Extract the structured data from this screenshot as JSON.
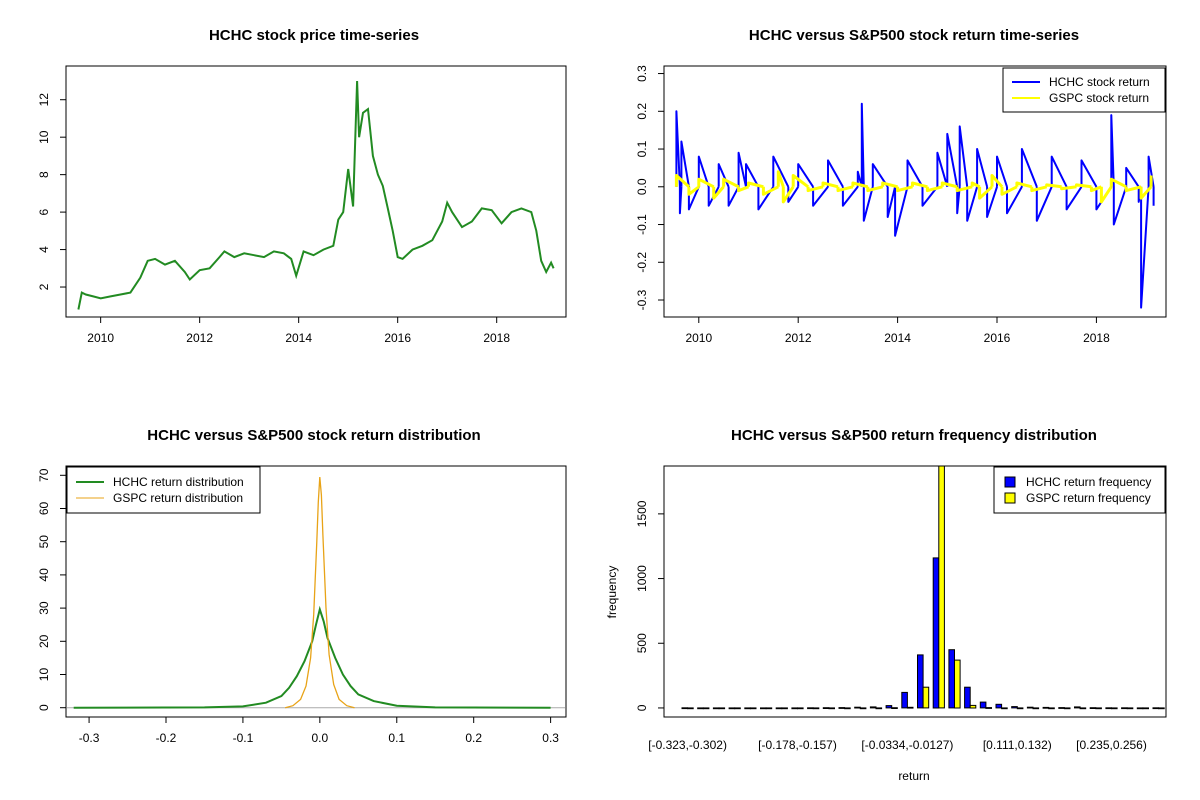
{
  "colors": {
    "hchc": "#228B22",
    "hchc_return": "#0000FF",
    "gspc": "#FFFF00",
    "gspc_density": "#E8A317"
  },
  "chart_data": [
    {
      "type": "line",
      "title": "HCHC stock price time-series",
      "xlim": [
        2009.3,
        2019.4
      ],
      "ylim": [
        0.4,
        13.8
      ],
      "xticks": [
        2010,
        2012,
        2014,
        2016,
        2018
      ],
      "xtick_labels": [
        "2010",
        "2012",
        "2014",
        "2016",
        "2018"
      ],
      "yticks": [
        2,
        4,
        6,
        8,
        10,
        12
      ],
      "ytick_labels": [
        "2",
        "4",
        "6",
        "8",
        "10",
        "12"
      ],
      "series": [
        {
          "color": "#228B22",
          "x": [
            2009.55,
            2009.62,
            2009.7,
            2009.85,
            2010.0,
            2010.2,
            2010.4,
            2010.6,
            2010.8,
            2010.95,
            2011.1,
            2011.3,
            2011.5,
            2011.7,
            2011.8,
            2012.0,
            2012.2,
            2012.4,
            2012.5,
            2012.7,
            2012.9,
            2013.1,
            2013.3,
            2013.5,
            2013.7,
            2013.85,
            2013.95,
            2014.1,
            2014.3,
            2014.5,
            2014.7,
            2014.8,
            2014.9,
            2015.0,
            2015.1,
            2015.18,
            2015.22,
            2015.3,
            2015.4,
            2015.5,
            2015.6,
            2015.7,
            2015.8,
            2015.9,
            2016.0,
            2016.1,
            2016.3,
            2016.5,
            2016.7,
            2016.9,
            2017.0,
            2017.1,
            2017.3,
            2017.5,
            2017.7,
            2017.9,
            2018.1,
            2018.3,
            2018.5,
            2018.7,
            2018.8,
            2018.9,
            2019.0,
            2019.1,
            2019.15
          ],
          "values": [
            0.8,
            1.7,
            1.6,
            1.5,
            1.4,
            1.5,
            1.6,
            1.7,
            2.5,
            3.4,
            3.5,
            3.2,
            3.4,
            2.8,
            2.4,
            2.9,
            3.0,
            3.6,
            3.9,
            3.6,
            3.8,
            3.7,
            3.6,
            3.9,
            3.8,
            3.5,
            2.6,
            3.9,
            3.7,
            4.0,
            4.2,
            5.6,
            6.0,
            8.3,
            6.3,
            13.0,
            10.0,
            11.3,
            11.5,
            9.0,
            8.0,
            7.4,
            6.2,
            5.0,
            3.6,
            3.5,
            4.0,
            4.2,
            4.5,
            5.5,
            6.5,
            6.0,
            5.2,
            5.5,
            6.2,
            6.1,
            5.4,
            6.0,
            6.2,
            6.0,
            5.0,
            3.4,
            2.8,
            3.3,
            3.0
          ]
        }
      ]
    },
    {
      "type": "line",
      "title": "HCHC versus S&P500 stock return time-series",
      "xlim": [
        2009.3,
        2019.4
      ],
      "ylim": [
        -0.345,
        0.32
      ],
      "xticks": [
        2010,
        2012,
        2014,
        2016,
        2018
      ],
      "xtick_labels": [
        "2010",
        "2012",
        "2014",
        "2016",
        "2018"
      ],
      "yticks": [
        -0.3,
        -0.2,
        -0.1,
        0.0,
        0.1,
        0.2,
        0.3
      ],
      "ytick_labels": [
        "-0.3",
        "-0.2",
        "-0.1",
        "0.0",
        "0.1",
        "0.2",
        "0.3"
      ],
      "legend": {
        "position": "top-right",
        "labels": [
          "HCHC stock return",
          "GSPC stock return"
        ]
      },
      "series": [
        {
          "name": "HCHC stock return",
          "color": "#0000FF",
          "x": [
            2009.55,
            2009.62,
            2009.65,
            2009.8,
            2010.0,
            2010.2,
            2010.4,
            2010.6,
            2010.8,
            2010.95,
            2011.2,
            2011.5,
            2011.8,
            2012.0,
            2012.3,
            2012.6,
            2012.9,
            2013.2,
            2013.28,
            2013.32,
            2013.5,
            2013.8,
            2013.95,
            2014.2,
            2014.5,
            2014.8,
            2015.0,
            2015.2,
            2015.25,
            2015.4,
            2015.6,
            2015.8,
            2016.0,
            2016.2,
            2016.5,
            2016.8,
            2017.1,
            2017.4,
            2017.7,
            2018.0,
            2018.3,
            2018.35,
            2018.6,
            2018.85,
            2018.9,
            2019.05,
            2019.15
          ],
          "values": [
            0.2,
            -0.07,
            0.12,
            -0.06,
            0.08,
            -0.05,
            0.06,
            -0.05,
            0.09,
            0.06,
            -0.06,
            0.08,
            -0.04,
            0.06,
            -0.05,
            0.07,
            -0.05,
            0.04,
            0.22,
            -0.09,
            0.06,
            -0.08,
            -0.13,
            0.07,
            -0.05,
            0.09,
            0.14,
            -0.07,
            0.16,
            -0.09,
            0.1,
            -0.08,
            0.08,
            -0.07,
            0.1,
            -0.09,
            0.08,
            -0.06,
            0.07,
            -0.06,
            0.19,
            -0.1,
            0.05,
            -0.04,
            -0.32,
            0.08,
            -0.05
          ]
        },
        {
          "name": "GSPC stock return",
          "color": "#FFFF00",
          "x": [
            2009.55,
            2009.8,
            2010.0,
            2010.3,
            2010.5,
            2010.8,
            2011.0,
            2011.3,
            2011.6,
            2011.7,
            2011.9,
            2012.2,
            2012.5,
            2012.8,
            2013.1,
            2013.4,
            2013.7,
            2014.0,
            2014.3,
            2014.6,
            2014.9,
            2015.2,
            2015.5,
            2015.65,
            2015.9,
            2016.1,
            2016.4,
            2016.7,
            2017.0,
            2017.3,
            2017.6,
            2017.9,
            2018.1,
            2018.3,
            2018.6,
            2018.9,
            2019.1
          ],
          "values": [
            0.03,
            -0.02,
            0.02,
            -0.03,
            0.02,
            -0.01,
            0.01,
            -0.02,
            0.04,
            -0.04,
            0.03,
            -0.01,
            0.01,
            -0.01,
            0.01,
            -0.01,
            0.01,
            -0.01,
            0.01,
            -0.01,
            0.01,
            -0.01,
            0.01,
            -0.03,
            0.03,
            -0.02,
            0.01,
            -0.01,
            0.005,
            -0.005,
            0.005,
            -0.01,
            -0.04,
            0.02,
            -0.01,
            -0.03,
            0.03
          ]
        }
      ]
    },
    {
      "type": "line",
      "title": "HCHC versus S&P500 stock return distribution",
      "xlim": [
        -0.33,
        0.32
      ],
      "ylim": [
        -2.8,
        72.8
      ],
      "xticks": [
        -0.3,
        -0.2,
        -0.1,
        0.0,
        0.1,
        0.2,
        0.3
      ],
      "xtick_labels": [
        "-0.3",
        "-0.2",
        "-0.1",
        "0.0",
        "0.1",
        "0.2",
        "0.3"
      ],
      "yticks": [
        0,
        10,
        20,
        30,
        40,
        50,
        60,
        70
      ],
      "ytick_labels": [
        "0",
        "10",
        "20",
        "30",
        "40",
        "50",
        "60",
        "70"
      ],
      "legend": {
        "position": "top-left",
        "labels": [
          "HCHC return distribution",
          "GSPC return distribution"
        ]
      },
      "series": [
        {
          "name": "HCHC return distribution",
          "color": "#228B22",
          "x": [
            -0.32,
            -0.15,
            -0.1,
            -0.07,
            -0.05,
            -0.04,
            -0.03,
            -0.02,
            -0.01,
            -0.005,
            0.0,
            0.005,
            0.01,
            0.02,
            0.03,
            0.04,
            0.05,
            0.07,
            0.1,
            0.15,
            0.3
          ],
          "values": [
            0.0,
            0.1,
            0.4,
            1.5,
            3.5,
            6.0,
            9.5,
            14.0,
            20.0,
            25.0,
            29.6,
            26.0,
            21.0,
            15.0,
            10.0,
            6.5,
            4.0,
            2.0,
            0.6,
            0.1,
            0.0
          ]
        },
        {
          "name": "GSPC return distribution",
          "color": "#E8A317",
          "x": [
            -0.045,
            -0.035,
            -0.025,
            -0.018,
            -0.012,
            -0.008,
            -0.004,
            -0.002,
            0.0,
            0.002,
            0.004,
            0.008,
            0.012,
            0.018,
            0.025,
            0.035,
            0.045
          ],
          "values": [
            0.0,
            0.6,
            2.5,
            6.5,
            15.0,
            28.0,
            50.0,
            62.0,
            69.5,
            64.0,
            52.0,
            30.0,
            16.0,
            7.0,
            2.5,
            0.6,
            0.0
          ]
        }
      ]
    },
    {
      "type": "bar",
      "title": "HCHC versus S&P500 return frequency distribution",
      "xlabel": "return",
      "ylabel": "frequency",
      "ylim": [
        -70,
        1870
      ],
      "yticks": [
        0,
        500,
        1000,
        1500
      ],
      "ytick_labels": [
        "0",
        "500",
        "1000",
        "1500"
      ],
      "category_labels_shown": [
        {
          "index": 0,
          "label": "[-0.323,-0.302)"
        },
        {
          "index": 7,
          "label": "[-0.178,-0.157)"
        },
        {
          "index": 14,
          "label": "[-0.0334,-0.0127)"
        },
        {
          "index": 21,
          "label": "[0.111,0.132)"
        },
        {
          "index": 27,
          "label": "[0.235,0.256)"
        }
      ],
      "category_count": 31,
      "legend": {
        "position": "top-right",
        "labels": [
          "HCHC return frequency",
          "GSPC return frequency"
        ]
      },
      "series": [
        {
          "name": "HCHC return frequency",
          "color": "#0000FF",
          "values": [
            1,
            0,
            0,
            0,
            0,
            0,
            0,
            0,
            1,
            2,
            3,
            6,
            8,
            18,
            120,
            410,
            1160,
            450,
            160,
            45,
            28,
            10,
            6,
            4,
            3,
            8,
            2,
            1,
            1,
            0,
            1
          ]
        },
        {
          "name": "GSPC return frequency",
          "color": "#FFFF00",
          "values": [
            0,
            0,
            0,
            0,
            0,
            0,
            0,
            0,
            0,
            0,
            0,
            0,
            0,
            2,
            5,
            160,
            1870,
            370,
            20,
            3,
            0,
            0,
            0,
            0,
            0,
            0,
            0,
            0,
            0,
            0,
            0
          ]
        }
      ]
    }
  ]
}
